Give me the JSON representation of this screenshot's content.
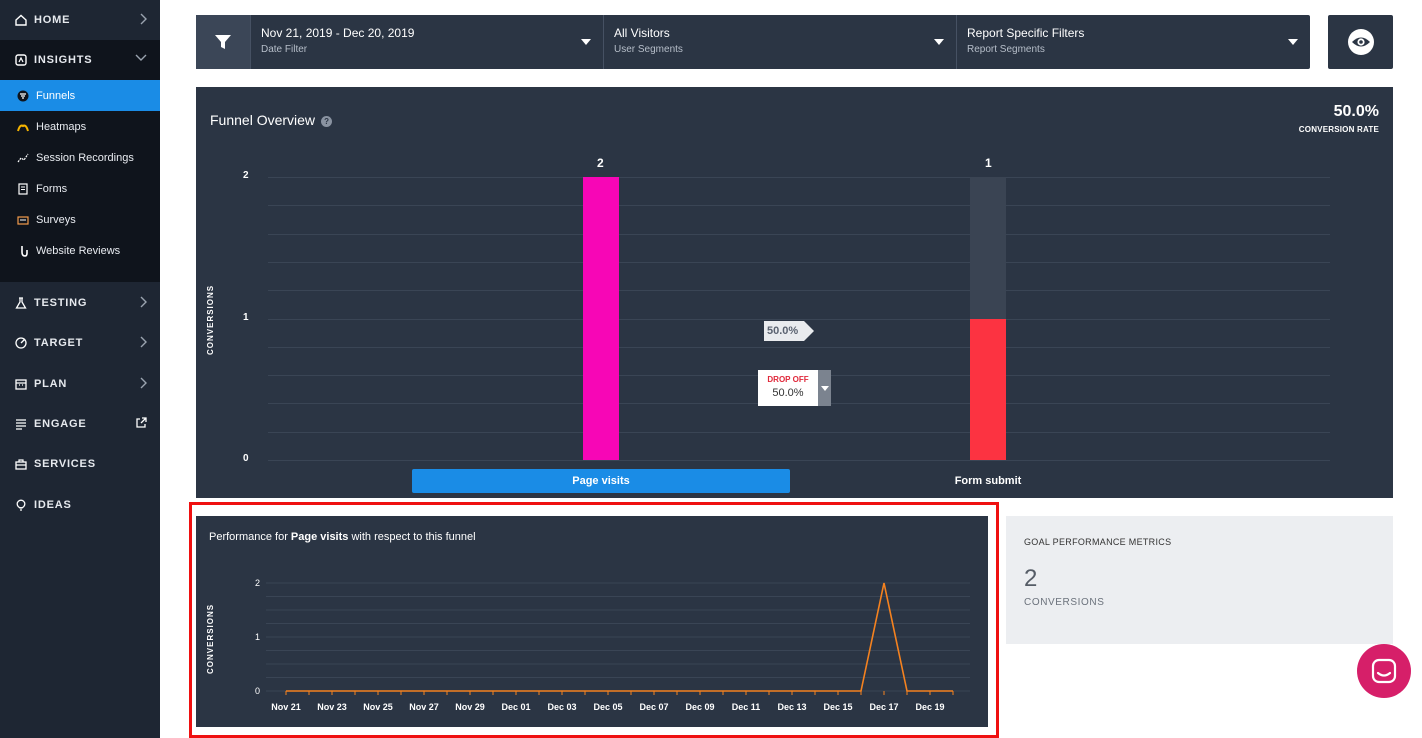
{
  "sidebar": {
    "top_items": [
      {
        "label": "HOME",
        "icon": "home-icon"
      },
      {
        "label": "INSIGHTS",
        "icon": "insights-icon"
      }
    ],
    "insights_items": [
      {
        "label": "Funnels",
        "icon": "funnel-icon",
        "active": true
      },
      {
        "label": "Heatmaps",
        "icon": "heatmap-icon"
      },
      {
        "label": "Session Recordings",
        "icon": "recording-icon"
      },
      {
        "label": "Forms",
        "icon": "form-icon"
      },
      {
        "label": "Surveys",
        "icon": "survey-icon"
      },
      {
        "label": "Website Reviews",
        "icon": "review-icon"
      }
    ],
    "bottom_items": [
      {
        "label": "TESTING",
        "icon": "flask-icon"
      },
      {
        "label": "TARGET",
        "icon": "target-icon"
      },
      {
        "label": "PLAN",
        "icon": "calendar-icon"
      },
      {
        "label": "ENGAGE",
        "icon": "engage-icon"
      },
      {
        "label": "SERVICES",
        "icon": "briefcase-icon"
      },
      {
        "label": "IDEAS",
        "icon": "lightbulb-icon"
      }
    ]
  },
  "filters": {
    "date": {
      "value": "Nov 21, 2019 - Dec 20, 2019",
      "label": "Date Filter"
    },
    "segment": {
      "value": "All Visitors",
      "label": "User Segments"
    },
    "report": {
      "value": "Report Specific Filters",
      "label": "Report Segments"
    }
  },
  "funnel": {
    "title": "Funnel Overview",
    "help": "?",
    "conversion_rate": "50.0%",
    "conversion_rate_label": "CONVERSION RATE",
    "y_axis_label": "CONVERSIONS",
    "drop_off_label": "DROP OFF",
    "drop_off_value": "50.0%",
    "step_rate": "50.0%"
  },
  "performance": {
    "title_prefix": "Performance for ",
    "title_bold": "Page visits",
    "title_suffix": " with respect to this funnel"
  },
  "goal": {
    "title": "GOAL PERFORMANCE METRICS",
    "value": "2",
    "label": "CONVERSIONS"
  },
  "colors": {
    "accent": "#1a8ce6",
    "bar1": "#f706b6",
    "bar2": "#fc3341",
    "line": "#f5821f",
    "highlight": "#ef1010",
    "chat": "#d61f69"
  },
  "chart_data": [
    {
      "type": "bar",
      "categories": [
        "Page visits",
        "Form submit"
      ],
      "values": [
        2,
        1
      ],
      "value_labels": [
        "2",
        "1"
      ],
      "ylabel": "CONVERSIONS",
      "ylim": [
        0,
        2
      ],
      "yticks": [
        "0",
        "1",
        "2"
      ]
    },
    {
      "type": "line",
      "x": [
        "Nov 21",
        "Nov 22",
        "Nov 23",
        "Nov 24",
        "Nov 25",
        "Nov 26",
        "Nov 27",
        "Nov 28",
        "Nov 29",
        "Nov 30",
        "Dec 01",
        "Dec 02",
        "Dec 03",
        "Dec 04",
        "Dec 05",
        "Dec 06",
        "Dec 07",
        "Dec 08",
        "Dec 09",
        "Dec 10",
        "Dec 11",
        "Dec 12",
        "Dec 13",
        "Dec 14",
        "Dec 15",
        "Dec 16",
        "Dec 17",
        "Dec 18",
        "Dec 19",
        "Dec 20"
      ],
      "values": [
        0,
        0,
        0,
        0,
        0,
        0,
        0,
        0,
        0,
        0,
        0,
        0,
        0,
        0,
        0,
        0,
        0,
        0,
        0,
        0,
        0,
        0,
        0,
        0,
        0,
        0,
        2,
        0,
        0,
        0
      ],
      "xtick_labels": [
        "Nov 21",
        "Nov 23",
        "Nov 25",
        "Nov 27",
        "Nov 29",
        "Dec 01",
        "Dec 03",
        "Dec 05",
        "Dec 07",
        "Dec 09",
        "Dec 11",
        "Dec 13",
        "Dec 15",
        "Dec 17",
        "Dec 19"
      ],
      "ylabel": "CONVERSIONS",
      "ylim": [
        0,
        2
      ],
      "yticks": [
        "0",
        "1",
        "2"
      ]
    }
  ]
}
